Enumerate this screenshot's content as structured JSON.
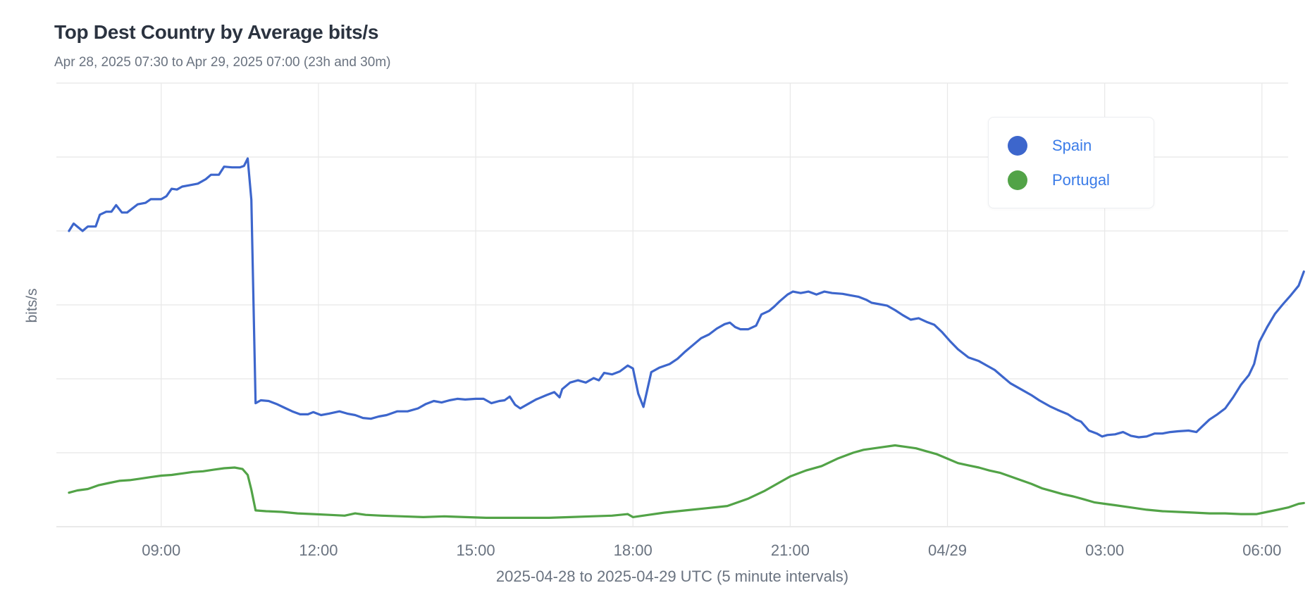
{
  "colors": {
    "spain": "#3d66cc",
    "portugal": "#52a347",
    "grid": "#e8e8e8",
    "text": "#6a7380"
  },
  "chart_data": {
    "type": "line",
    "title": "Top Dest Country by Average bits/s",
    "subtitle": "Apr 28, 2025 07:30 to Apr 29, 2025 07:00 (23h and 30m)",
    "xlabel": "2025-04-28 to 2025-04-29 UTC (5 minute intervals)",
    "ylabel": "bits/s",
    "x_unit": "hours since 2025-04-28 00:00 UTC",
    "xlim": [
      7.0,
      30.5
    ],
    "ylim": [
      0,
      6
    ],
    "y_ticks": [
      0,
      1,
      2,
      3,
      4,
      5,
      6
    ],
    "y_tick_labels_shown": false,
    "x_ticks": [
      {
        "x": 9,
        "label": "09:00"
      },
      {
        "x": 12,
        "label": "12:00"
      },
      {
        "x": 15,
        "label": "15:00"
      },
      {
        "x": 18,
        "label": "18:00"
      },
      {
        "x": 21,
        "label": "21:00"
      },
      {
        "x": 24,
        "label": "04/29"
      },
      {
        "x": 27,
        "label": "03:00"
      },
      {
        "x": 30,
        "label": "06:00"
      }
    ],
    "legend_position": "top-right",
    "series": [
      {
        "name": "Spain",
        "color": "#3d66cc",
        "points": [
          [
            7.24,
            4.0
          ],
          [
            7.33,
            4.1
          ],
          [
            7.5,
            4.0
          ],
          [
            7.6,
            4.06
          ],
          [
            7.75,
            4.06
          ],
          [
            7.83,
            4.22
          ],
          [
            7.95,
            4.26
          ],
          [
            8.05,
            4.26
          ],
          [
            8.14,
            4.35
          ],
          [
            8.25,
            4.25
          ],
          [
            8.35,
            4.25
          ],
          [
            8.55,
            4.36
          ],
          [
            8.7,
            4.38
          ],
          [
            8.8,
            4.43
          ],
          [
            9.0,
            4.43
          ],
          [
            9.1,
            4.47
          ],
          [
            9.2,
            4.57
          ],
          [
            9.3,
            4.56
          ],
          [
            9.4,
            4.6
          ],
          [
            9.55,
            4.62
          ],
          [
            9.7,
            4.64
          ],
          [
            9.85,
            4.7
          ],
          [
            9.95,
            4.76
          ],
          [
            10.1,
            4.76
          ],
          [
            10.2,
            4.87
          ],
          [
            10.35,
            4.86
          ],
          [
            10.5,
            4.86
          ],
          [
            10.58,
            4.88
          ],
          [
            10.65,
            4.98
          ],
          [
            10.72,
            4.42
          ],
          [
            10.8,
            1.67
          ],
          [
            10.9,
            1.71
          ],
          [
            11.05,
            1.7
          ],
          [
            11.2,
            1.66
          ],
          [
            11.35,
            1.61
          ],
          [
            11.5,
            1.56
          ],
          [
            11.65,
            1.52
          ],
          [
            11.8,
            1.52
          ],
          [
            11.9,
            1.55
          ],
          [
            12.05,
            1.51
          ],
          [
            12.2,
            1.53
          ],
          [
            12.4,
            1.56
          ],
          [
            12.55,
            1.53
          ],
          [
            12.7,
            1.51
          ],
          [
            12.85,
            1.47
          ],
          [
            13.0,
            1.46
          ],
          [
            13.15,
            1.49
          ],
          [
            13.3,
            1.51
          ],
          [
            13.5,
            1.56
          ],
          [
            13.7,
            1.56
          ],
          [
            13.9,
            1.6
          ],
          [
            14.05,
            1.66
          ],
          [
            14.2,
            1.7
          ],
          [
            14.35,
            1.68
          ],
          [
            14.5,
            1.71
          ],
          [
            14.65,
            1.73
          ],
          [
            14.8,
            1.72
          ],
          [
            15.0,
            1.73
          ],
          [
            15.15,
            1.73
          ],
          [
            15.3,
            1.67
          ],
          [
            15.45,
            1.7
          ],
          [
            15.55,
            1.71
          ],
          [
            15.65,
            1.76
          ],
          [
            15.75,
            1.65
          ],
          [
            15.85,
            1.6
          ],
          [
            16.0,
            1.66
          ],
          [
            16.15,
            1.72
          ],
          [
            16.35,
            1.78
          ],
          [
            16.5,
            1.82
          ],
          [
            16.6,
            1.75
          ],
          [
            16.65,
            1.86
          ],
          [
            16.8,
            1.95
          ],
          [
            16.95,
            1.98
          ],
          [
            17.1,
            1.95
          ],
          [
            17.25,
            2.01
          ],
          [
            17.35,
            1.98
          ],
          [
            17.45,
            2.08
          ],
          [
            17.6,
            2.06
          ],
          [
            17.75,
            2.1
          ],
          [
            17.9,
            2.18
          ],
          [
            18.0,
            2.14
          ],
          [
            18.1,
            1.8
          ],
          [
            18.2,
            1.62
          ],
          [
            18.35,
            2.09
          ],
          [
            18.5,
            2.15
          ],
          [
            18.7,
            2.2
          ],
          [
            18.85,
            2.27
          ],
          [
            19.0,
            2.37
          ],
          [
            19.15,
            2.46
          ],
          [
            19.3,
            2.55
          ],
          [
            19.45,
            2.6
          ],
          [
            19.6,
            2.68
          ],
          [
            19.75,
            2.74
          ],
          [
            19.85,
            2.76
          ],
          [
            19.95,
            2.7
          ],
          [
            20.05,
            2.67
          ],
          [
            20.2,
            2.67
          ],
          [
            20.35,
            2.72
          ],
          [
            20.45,
            2.87
          ],
          [
            20.6,
            2.92
          ],
          [
            20.7,
            2.98
          ],
          [
            20.8,
            3.05
          ],
          [
            20.95,
            3.14
          ],
          [
            21.05,
            3.18
          ],
          [
            21.2,
            3.16
          ],
          [
            21.35,
            3.18
          ],
          [
            21.5,
            3.14
          ],
          [
            21.65,
            3.18
          ],
          [
            21.8,
            3.16
          ],
          [
            22.0,
            3.15
          ],
          [
            22.15,
            3.13
          ],
          [
            22.3,
            3.11
          ],
          [
            22.45,
            3.07
          ],
          [
            22.55,
            3.03
          ],
          [
            22.7,
            3.01
          ],
          [
            22.85,
            2.99
          ],
          [
            23.0,
            2.93
          ],
          [
            23.15,
            2.86
          ],
          [
            23.3,
            2.8
          ],
          [
            23.45,
            2.82
          ],
          [
            23.6,
            2.77
          ],
          [
            23.75,
            2.73
          ],
          [
            23.9,
            2.63
          ],
          [
            24.05,
            2.51
          ],
          [
            24.2,
            2.4
          ],
          [
            24.4,
            2.29
          ],
          [
            24.6,
            2.24
          ],
          [
            24.75,
            2.18
          ],
          [
            24.9,
            2.12
          ],
          [
            25.05,
            2.03
          ],
          [
            25.2,
            1.94
          ],
          [
            25.4,
            1.86
          ],
          [
            25.6,
            1.78
          ],
          [
            25.75,
            1.71
          ],
          [
            25.95,
            1.63
          ],
          [
            26.1,
            1.58
          ],
          [
            26.3,
            1.52
          ],
          [
            26.45,
            1.45
          ],
          [
            26.55,
            1.42
          ],
          [
            26.7,
            1.3
          ],
          [
            26.85,
            1.26
          ],
          [
            26.95,
            1.22
          ],
          [
            27.05,
            1.24
          ],
          [
            27.2,
            1.25
          ],
          [
            27.35,
            1.28
          ],
          [
            27.5,
            1.23
          ],
          [
            27.65,
            1.21
          ],
          [
            27.8,
            1.22
          ],
          [
            27.95,
            1.26
          ],
          [
            28.1,
            1.26
          ],
          [
            28.25,
            1.28
          ],
          [
            28.4,
            1.29
          ],
          [
            28.6,
            1.3
          ],
          [
            28.75,
            1.28
          ],
          [
            28.85,
            1.35
          ],
          [
            29.0,
            1.45
          ],
          [
            29.15,
            1.52
          ],
          [
            29.3,
            1.6
          ],
          [
            29.45,
            1.75
          ],
          [
            29.6,
            1.92
          ],
          [
            29.75,
            2.05
          ],
          [
            29.85,
            2.2
          ],
          [
            29.95,
            2.5
          ],
          [
            30.1,
            2.7
          ],
          [
            30.25,
            2.88
          ],
          [
            30.4,
            3.01
          ],
          [
            30.55,
            3.13
          ],
          [
            30.7,
            3.26
          ],
          [
            30.8,
            3.45
          ]
        ]
      },
      {
        "name": "Portugal",
        "color": "#52a347",
        "points": [
          [
            7.24,
            0.46
          ],
          [
            7.4,
            0.49
          ],
          [
            7.6,
            0.51
          ],
          [
            7.8,
            0.56
          ],
          [
            8.0,
            0.59
          ],
          [
            8.2,
            0.62
          ],
          [
            8.4,
            0.63
          ],
          [
            8.6,
            0.65
          ],
          [
            8.8,
            0.67
          ],
          [
            9.0,
            0.69
          ],
          [
            9.2,
            0.7
          ],
          [
            9.4,
            0.72
          ],
          [
            9.6,
            0.74
          ],
          [
            9.8,
            0.75
          ],
          [
            10.0,
            0.77
          ],
          [
            10.2,
            0.79
          ],
          [
            10.4,
            0.8
          ],
          [
            10.55,
            0.78
          ],
          [
            10.65,
            0.7
          ],
          [
            10.72,
            0.5
          ],
          [
            10.8,
            0.22
          ],
          [
            11.0,
            0.21
          ],
          [
            11.3,
            0.2
          ],
          [
            11.6,
            0.18
          ],
          [
            11.9,
            0.17
          ],
          [
            12.2,
            0.16
          ],
          [
            12.5,
            0.15
          ],
          [
            12.7,
            0.18
          ],
          [
            12.9,
            0.16
          ],
          [
            13.2,
            0.15
          ],
          [
            13.6,
            0.14
          ],
          [
            14.0,
            0.13
          ],
          [
            14.4,
            0.14
          ],
          [
            14.8,
            0.13
          ],
          [
            15.2,
            0.12
          ],
          [
            15.6,
            0.12
          ],
          [
            16.0,
            0.12
          ],
          [
            16.4,
            0.12
          ],
          [
            16.8,
            0.13
          ],
          [
            17.2,
            0.14
          ],
          [
            17.6,
            0.15
          ],
          [
            17.9,
            0.17
          ],
          [
            18.0,
            0.13
          ],
          [
            18.1,
            0.14
          ],
          [
            18.3,
            0.16
          ],
          [
            18.6,
            0.19
          ],
          [
            19.0,
            0.22
          ],
          [
            19.4,
            0.25
          ],
          [
            19.8,
            0.28
          ],
          [
            20.2,
            0.38
          ],
          [
            20.5,
            0.48
          ],
          [
            20.8,
            0.6
          ],
          [
            21.0,
            0.68
          ],
          [
            21.3,
            0.76
          ],
          [
            21.6,
            0.82
          ],
          [
            21.9,
            0.92
          ],
          [
            22.2,
            1.0
          ],
          [
            22.4,
            1.04
          ],
          [
            22.6,
            1.06
          ],
          [
            22.8,
            1.08
          ],
          [
            23.0,
            1.1
          ],
          [
            23.2,
            1.08
          ],
          [
            23.4,
            1.06
          ],
          [
            23.6,
            1.02
          ],
          [
            23.8,
            0.98
          ],
          [
            24.0,
            0.92
          ],
          [
            24.2,
            0.86
          ],
          [
            24.4,
            0.83
          ],
          [
            24.6,
            0.8
          ],
          [
            24.8,
            0.76
          ],
          [
            25.0,
            0.73
          ],
          [
            25.2,
            0.68
          ],
          [
            25.4,
            0.63
          ],
          [
            25.6,
            0.58
          ],
          [
            25.8,
            0.52
          ],
          [
            26.0,
            0.48
          ],
          [
            26.2,
            0.44
          ],
          [
            26.4,
            0.41
          ],
          [
            26.6,
            0.37
          ],
          [
            26.8,
            0.33
          ],
          [
            27.0,
            0.31
          ],
          [
            27.2,
            0.29
          ],
          [
            27.5,
            0.26
          ],
          [
            27.8,
            0.23
          ],
          [
            28.1,
            0.21
          ],
          [
            28.4,
            0.2
          ],
          [
            28.7,
            0.19
          ],
          [
            29.0,
            0.18
          ],
          [
            29.3,
            0.18
          ],
          [
            29.6,
            0.17
          ],
          [
            29.9,
            0.17
          ],
          [
            30.1,
            0.2
          ],
          [
            30.3,
            0.23
          ],
          [
            30.5,
            0.26
          ],
          [
            30.7,
            0.31
          ],
          [
            30.8,
            0.32
          ]
        ]
      }
    ]
  }
}
